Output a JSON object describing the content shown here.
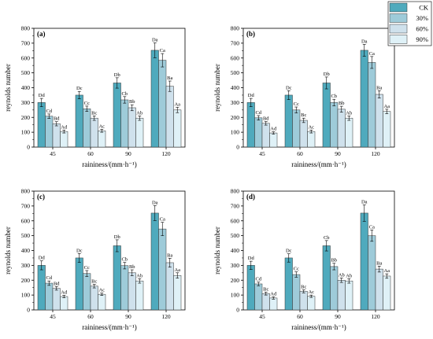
{
  "colors": [
    "#4faabd",
    "#9ecbd9",
    "#cfe1ec",
    "#dff1f7"
  ],
  "legend": [
    "CK",
    "30%",
    "60%",
    "90%"
  ],
  "chart_data": [
    {
      "type": "bar",
      "panel_label": "(a)",
      "categories": [
        "45",
        "60",
        "90",
        "120"
      ],
      "xlabel": "raininess/(mm·h⁻¹)",
      "ylabel": "reynolds number",
      "ylim": [
        0,
        800
      ],
      "yticks": [
        0,
        100,
        200,
        300,
        400,
        500,
        600,
        700,
        800
      ],
      "series": [
        {
          "name": "CK",
          "values": [
            300,
            350,
            432,
            652
          ],
          "errors": [
            28,
            25,
            35,
            50
          ],
          "labels": [
            "Dd",
            "Dc",
            "Db",
            "Da"
          ]
        },
        {
          "name": "30%",
          "values": [
            208,
            258,
            318,
            585
          ],
          "errors": [
            15,
            18,
            22,
            45
          ],
          "labels": [
            "Cd",
            "Cc",
            "Cb",
            "Ca"
          ]
        },
        {
          "name": "60%",
          "values": [
            157,
            195,
            265,
            410
          ],
          "errors": [
            14,
            15,
            20,
            35
          ],
          "labels": [
            "Bd",
            "Bc",
            "Bb",
            "Ba"
          ]
        },
        {
          "name": "90%",
          "values": [
            105,
            110,
            195,
            250
          ],
          "errors": [
            10,
            10,
            15,
            18
          ],
          "labels": [
            "Ad",
            "Ac",
            "Ab",
            "Aa"
          ]
        }
      ]
    },
    {
      "type": "bar",
      "panel_label": "(b)",
      "categories": [
        "45",
        "60",
        "90",
        "120"
      ],
      "xlabel": "raininess/(mm·h⁻¹)",
      "ylabel": "reynolds number",
      "ylim": [
        0,
        800
      ],
      "yticks": [
        0,
        100,
        200,
        300,
        400,
        500,
        600,
        700,
        800
      ],
      "series": [
        {
          "name": "CK",
          "values": [
            300,
            350,
            432,
            652
          ],
          "errors": [
            28,
            30,
            40,
            40
          ],
          "labels": [
            "Dd",
            "Dc",
            "Db",
            "Da"
          ]
        },
        {
          "name": "30%",
          "values": [
            197,
            250,
            300,
            570
          ],
          "errors": [
            15,
            20,
            22,
            40
          ],
          "labels": [
            "Cd",
            "Cc",
            "Cb",
            "Ca"
          ]
        },
        {
          "name": "60%",
          "values": [
            160,
            180,
            255,
            355
          ],
          "errors": [
            12,
            15,
            20,
            25
          ],
          "labels": [
            "Bd",
            "Bc",
            "Bb",
            "Ba"
          ]
        },
        {
          "name": "90%",
          "values": [
            95,
            105,
            195,
            240
          ],
          "errors": [
            8,
            10,
            15,
            15
          ],
          "labels": [
            "Ad",
            "Ac",
            "Ab",
            "Aa"
          ]
        }
      ]
    },
    {
      "type": "bar",
      "panel_label": "(c)",
      "categories": [
        "45",
        "60",
        "90",
        "120"
      ],
      "xlabel": "raininess/(mm·h⁻¹)",
      "ylabel": "reynolds number",
      "ylim": [
        0,
        800
      ],
      "yticks": [
        0,
        100,
        200,
        300,
        400,
        500,
        600,
        700,
        800
      ],
      "series": [
        {
          "name": "CK",
          "values": [
            300,
            350,
            432,
            652
          ],
          "errors": [
            30,
            30,
            40,
            50
          ],
          "labels": [
            "Dd",
            "Dc",
            "Db",
            "Da"
          ]
        },
        {
          "name": "30%",
          "values": [
            180,
            245,
            298,
            545
          ],
          "errors": [
            15,
            20,
            22,
            45
          ],
          "labels": [
            "Cd",
            "Cc",
            "Cb",
            "Ca"
          ]
        },
        {
          "name": "60%",
          "values": [
            145,
            160,
            250,
            318
          ],
          "errors": [
            12,
            12,
            20,
            30
          ],
          "labels": [
            "Bd",
            "Bc",
            "Bb",
            "Ba"
          ]
        },
        {
          "name": "90%",
          "values": [
            90,
            105,
            195,
            232
          ],
          "errors": [
            8,
            8,
            15,
            18
          ],
          "labels": [
            "Ad",
            "Ac",
            "Ab",
            "Aa"
          ]
        }
      ]
    },
    {
      "type": "bar",
      "panel_label": "(d)",
      "categories": [
        "45",
        "60",
        "90",
        "120"
      ],
      "xlabel": "raininess/(mm·h⁻¹)",
      "ylabel": "reynolds number",
      "ylim": [
        0,
        800
      ],
      "yticks": [
        0,
        100,
        200,
        300,
        400,
        500,
        600,
        700,
        800
      ],
      "series": [
        {
          "name": "CK",
          "values": [
            300,
            350,
            432,
            652
          ],
          "errors": [
            28,
            28,
            35,
            55
          ],
          "labels": [
            "Dd",
            "Dc",
            "Cb",
            "Da"
          ]
        },
        {
          "name": "30%",
          "values": [
            175,
            238,
            292,
            500
          ],
          "errors": [
            12,
            18,
            22,
            38
          ],
          "labels": [
            "Cd",
            "Cc",
            "Bb",
            "Ca"
          ]
        },
        {
          "name": "60%",
          "values": [
            110,
            125,
            200,
            275
          ],
          "errors": [
            10,
            10,
            15,
            20
          ],
          "labels": [
            "Bc",
            "Bc",
            "Ab",
            "Ba"
          ]
        },
        {
          "name": "90%",
          "values": [
            80,
            92,
            195,
            228
          ],
          "errors": [
            8,
            8,
            15,
            15
          ],
          "labels": [
            "Ad",
            "Ac",
            "Ab",
            "Aa"
          ]
        }
      ]
    }
  ]
}
